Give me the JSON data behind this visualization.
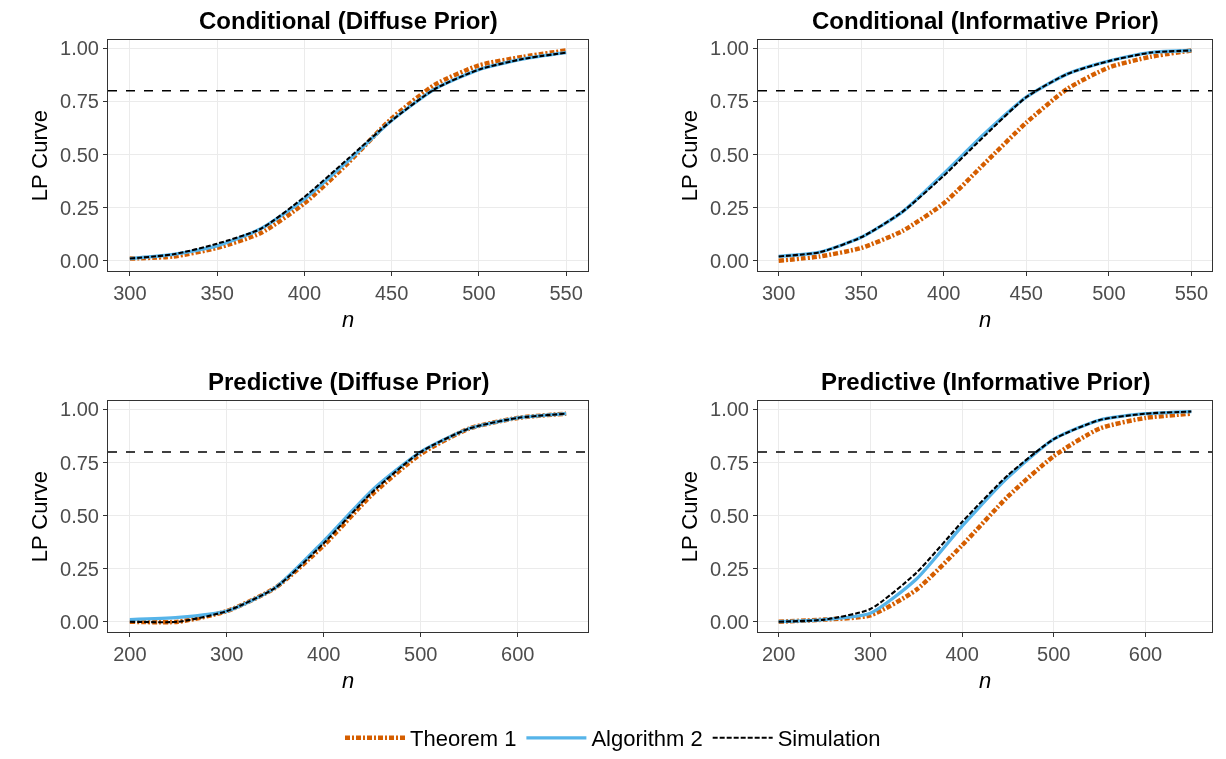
{
  "chart_data": [
    {
      "type": "line",
      "title": "Conditional (Diffuse Prior)",
      "xlabel": "n",
      "ylabel": "LP Curve",
      "x": [
        300,
        325,
        350,
        375,
        400,
        425,
        450,
        475,
        500,
        525,
        550
      ],
      "xlim": [
        287.5,
        562.5
      ],
      "xticks": [
        300,
        350,
        400,
        450,
        500,
        550
      ],
      "ylim": [
        -0.05,
        1.04
      ],
      "yticks": [
        {
          "value": 0,
          "label": "0.00"
        },
        {
          "value": 0.25,
          "label": "0.25"
        },
        {
          "value": 0.5,
          "label": "0.50"
        },
        {
          "value": 0.75,
          "label": "0.75"
        },
        {
          "value": 1,
          "label": "1.00"
        }
      ],
      "grid": true,
      "legend": "bottom",
      "ref_lines": [
        {
          "axis": "y",
          "value": 0.8,
          "color": "#000000",
          "line_style": "dashed"
        }
      ],
      "series": [
        {
          "name": "Theorem 1",
          "color": "#d55e00",
          "line_style": "dashdot",
          "values": [
            0.01,
            0.02,
            0.06,
            0.13,
            0.27,
            0.46,
            0.67,
            0.83,
            0.92,
            0.96,
            0.99
          ]
        },
        {
          "name": "Algorithm 2",
          "color": "#56b4e9",
          "line_style": "solid",
          "values": [
            0.01,
            0.03,
            0.07,
            0.15,
            0.29,
            0.47,
            0.66,
            0.81,
            0.9,
            0.95,
            0.98
          ]
        },
        {
          "name": "Simulation",
          "color": "#000000",
          "line_style": "dashed",
          "values": [
            0.01,
            0.03,
            0.08,
            0.15,
            0.3,
            0.48,
            0.66,
            0.81,
            0.9,
            0.95,
            0.98
          ]
        }
      ]
    },
    {
      "type": "line",
      "title": "Conditional (Informative Prior)",
      "xlabel": "n",
      "ylabel": "LP Curve",
      "x": [
        300,
        325,
        350,
        375,
        400,
        425,
        450,
        475,
        500,
        525,
        550
      ],
      "xlim": [
        287.5,
        562.5
      ],
      "xticks": [
        300,
        350,
        400,
        450,
        500,
        550
      ],
      "ylim": [
        -0.05,
        1.04
      ],
      "yticks": [
        {
          "value": 0,
          "label": "0.00"
        },
        {
          "value": 0.25,
          "label": "0.25"
        },
        {
          "value": 0.5,
          "label": "0.50"
        },
        {
          "value": 0.75,
          "label": "0.75"
        },
        {
          "value": 1,
          "label": "1.00"
        }
      ],
      "grid": true,
      "legend": "bottom",
      "ref_lines": [
        {
          "axis": "y",
          "value": 0.8,
          "color": "#000000",
          "line_style": "dashed"
        }
      ],
      "series": [
        {
          "name": "Theorem 1",
          "color": "#d55e00",
          "line_style": "dashdot",
          "values": [
            0.0,
            0.02,
            0.06,
            0.14,
            0.27,
            0.46,
            0.65,
            0.81,
            0.91,
            0.96,
            0.99
          ]
        },
        {
          "name": "Algorithm 2",
          "color": "#56b4e9",
          "line_style": "solid",
          "values": [
            0.02,
            0.04,
            0.11,
            0.23,
            0.41,
            0.6,
            0.77,
            0.88,
            0.94,
            0.98,
            0.99
          ]
        },
        {
          "name": "Simulation",
          "color": "#000000",
          "line_style": "dashed",
          "values": [
            0.02,
            0.04,
            0.11,
            0.23,
            0.4,
            0.59,
            0.77,
            0.88,
            0.94,
            0.98,
            0.99
          ]
        }
      ]
    },
    {
      "type": "line",
      "title": "Predictive (Diffuse Prior)",
      "xlabel": "n",
      "ylabel": "LP Curve",
      "x": [
        200,
        250,
        300,
        350,
        400,
        450,
        500,
        550,
        600,
        650
      ],
      "xlim": [
        177.5,
        672.5
      ],
      "xticks": [
        200,
        300,
        400,
        500,
        600
      ],
      "ylim": [
        -0.05,
        1.04
      ],
      "yticks": [
        {
          "value": 0,
          "label": "0.00"
        },
        {
          "value": 0.25,
          "label": "0.25"
        },
        {
          "value": 0.5,
          "label": "0.50"
        },
        {
          "value": 0.75,
          "label": "0.75"
        },
        {
          "value": 1,
          "label": "1.00"
        }
      ],
      "grid": true,
      "legend": "bottom",
      "ref_lines": [
        {
          "axis": "y",
          "value": 0.8,
          "color": "#000000",
          "line_style": "dashed"
        }
      ],
      "series": [
        {
          "name": "Theorem 1",
          "color": "#d55e00",
          "line_style": "dashdot",
          "values": [
            0.0,
            0.0,
            0.05,
            0.16,
            0.36,
            0.6,
            0.79,
            0.91,
            0.96,
            0.98
          ]
        },
        {
          "name": "Algorithm 2",
          "color": "#56b4e9",
          "line_style": "solid",
          "values": [
            0.01,
            0.02,
            0.05,
            0.16,
            0.38,
            0.62,
            0.8,
            0.91,
            0.96,
            0.98
          ]
        },
        {
          "name": "Simulation",
          "color": "#000000",
          "line_style": "dashed",
          "values": [
            0.0,
            0.0,
            0.05,
            0.16,
            0.37,
            0.61,
            0.8,
            0.91,
            0.96,
            0.98
          ]
        }
      ]
    },
    {
      "type": "line",
      "title": "Predictive (Informative Prior)",
      "xlabel": "n",
      "ylabel": "LP Curve",
      "x": [
        200,
        250,
        300,
        350,
        400,
        450,
        500,
        550,
        600,
        650
      ],
      "xlim": [
        177.5,
        672.5
      ],
      "xticks": [
        200,
        300,
        400,
        500,
        600
      ],
      "ylim": [
        -0.05,
        1.04
      ],
      "yticks": [
        {
          "value": 0,
          "label": "0.00"
        },
        {
          "value": 0.25,
          "label": "0.25"
        },
        {
          "value": 0.5,
          "label": "0.50"
        },
        {
          "value": 0.75,
          "label": "0.75"
        },
        {
          "value": 1,
          "label": "1.00"
        }
      ],
      "grid": true,
      "legend": "bottom",
      "ref_lines": [
        {
          "axis": "y",
          "value": 0.8,
          "color": "#000000",
          "line_style": "dashed"
        }
      ],
      "series": [
        {
          "name": "Theorem 1",
          "color": "#d55e00",
          "line_style": "dashdot",
          "values": [
            0.0,
            0.01,
            0.03,
            0.15,
            0.36,
            0.59,
            0.78,
            0.91,
            0.96,
            0.98
          ]
        },
        {
          "name": "Algorithm 2",
          "color": "#56b4e9",
          "line_style": "solid",
          "values": [
            0.0,
            0.01,
            0.04,
            0.2,
            0.45,
            0.68,
            0.86,
            0.95,
            0.98,
            0.99
          ]
        },
        {
          "name": "Simulation",
          "color": "#000000",
          "line_style": "dashed",
          "values": [
            0.0,
            0.01,
            0.06,
            0.23,
            0.47,
            0.69,
            0.86,
            0.95,
            0.98,
            0.99
          ]
        }
      ]
    }
  ]
}
